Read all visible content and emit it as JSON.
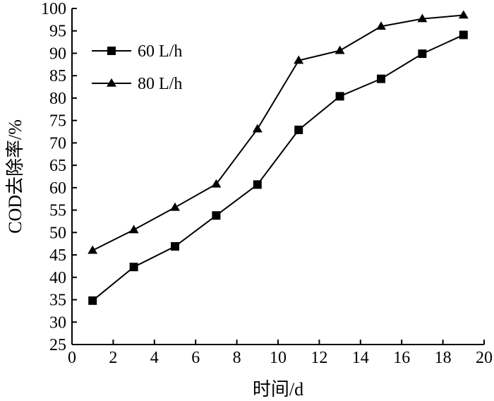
{
  "chart_data": {
    "type": "line",
    "xlabel": "时间/d",
    "ylabel": "COD去除率/%",
    "xlim": [
      0,
      20
    ],
    "ylim": [
      25,
      100
    ],
    "x_ticks": [
      0,
      2,
      4,
      6,
      8,
      10,
      12,
      14,
      16,
      18,
      20
    ],
    "y_ticks": [
      25,
      30,
      35,
      40,
      45,
      50,
      55,
      60,
      65,
      70,
      75,
      80,
      85,
      90,
      95,
      100
    ],
    "grid": false,
    "legend_position": "top-left",
    "series": [
      {
        "name": "60 L/h",
        "marker": "square",
        "color": "#000000",
        "x": [
          1,
          3,
          5,
          7,
          9,
          11,
          13,
          15,
          17,
          19
        ],
        "values": [
          34.8,
          42.3,
          46.9,
          53.8,
          60.7,
          72.9,
          80.4,
          84.3,
          89.9,
          94.1
        ]
      },
      {
        "name": "80 L/h",
        "marker": "triangle",
        "color": "#000000",
        "x": [
          1,
          3,
          5,
          7,
          9,
          11,
          13,
          15,
          17,
          19
        ],
        "values": [
          46.0,
          50.6,
          55.6,
          60.8,
          73.1,
          88.4,
          90.6,
          96.0,
          97.7,
          98.5
        ]
      }
    ]
  }
}
